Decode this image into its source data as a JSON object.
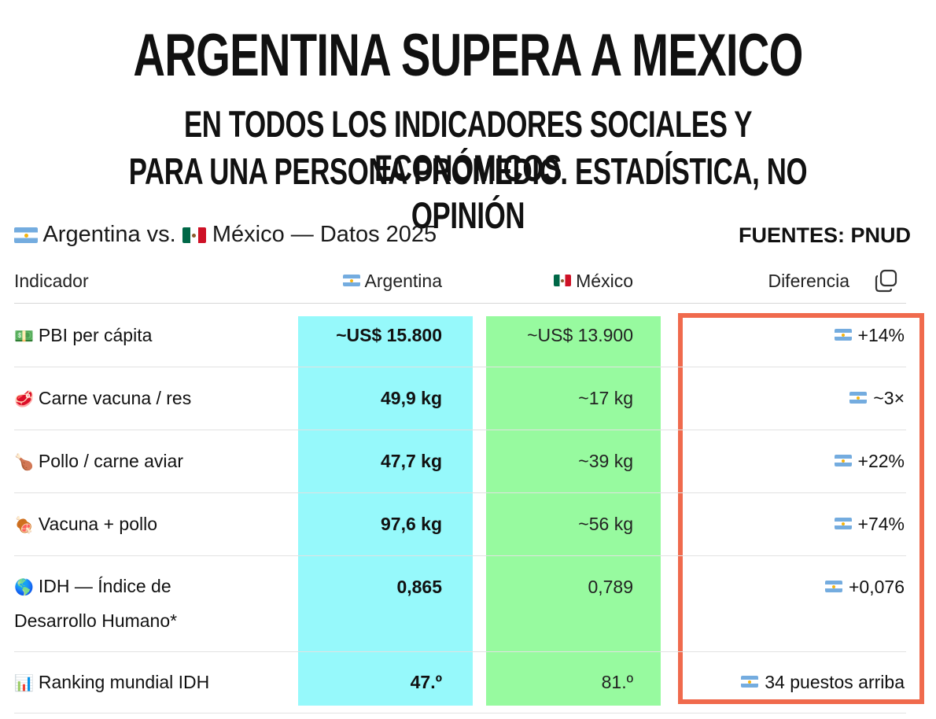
{
  "headline": "ARGENTINA SUPERA A MEXICO",
  "subheadline_1": "EN TODOS LOS INDICADORES SOCIALES Y ECONÓMICOS",
  "subheadline_2": "PARA UNA PERSONA PROMEDIO. ESTADÍSTICA, NO OPINIÓN",
  "table": {
    "title_a": "Argentina vs.",
    "title_b": "México — Datos 2025",
    "sources": "FUENTES: PNUD",
    "headers": {
      "indicator": "Indicador",
      "argentina": "Argentina",
      "mexico": "México",
      "difference": "Diferencia"
    },
    "rows": [
      {
        "icon": "money-icon",
        "label": "PBI per cápita",
        "argentina": "~US$ 15.800",
        "mexico": "~US$ 13.900",
        "difference": "+14%"
      },
      {
        "icon": "beef-icon",
        "label": "Carne vacuna / res",
        "argentina": "49,9 kg",
        "mexico": "~17 kg",
        "difference": "~3×"
      },
      {
        "icon": "chicken-leg-icon",
        "label": "Pollo / carne aviar",
        "argentina": "47,7 kg",
        "mexico": "~39 kg",
        "difference": "+22%"
      },
      {
        "icon": "meat-on-bone-icon",
        "label": "Vacuna + pollo",
        "argentina": "97,6 kg",
        "mexico": "~56 kg",
        "difference": "+74%"
      },
      {
        "icon": "globe-icon",
        "label_line1": "IDH — Índice de",
        "label_line2": "Desarrollo Humano*",
        "argentina": "0,865",
        "mexico": "0,789",
        "difference": "+0,076"
      },
      {
        "icon": "bar-chart-icon",
        "label": "Ranking mundial IDH",
        "argentina": "47.º",
        "mexico": "81.º",
        "difference": "34 puestos arriba"
      }
    ]
  },
  "colors": {
    "argentina_column": "#96f9fb",
    "mexico_column": "#97fa9f",
    "difference_border": "#f06a4d"
  }
}
